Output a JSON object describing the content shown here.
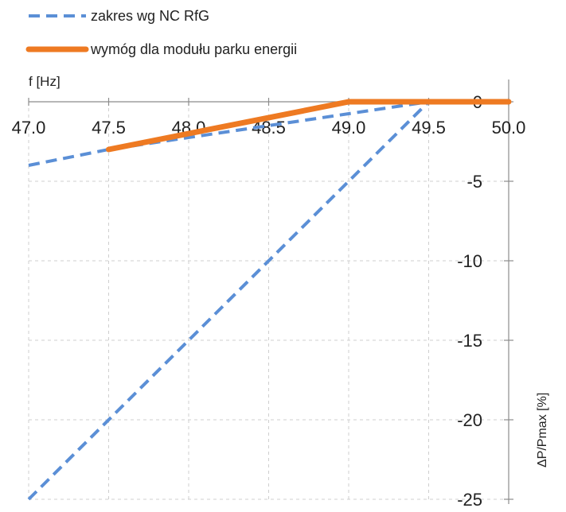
{
  "chart_data": {
    "type": "line",
    "title": "",
    "xlabel": "f [Hz]",
    "ylabel": "ΔP/Pmax [%]",
    "xlim": [
      47.0,
      50.0
    ],
    "ylim": [
      -25,
      0
    ],
    "x_ticks": [
      "47.0",
      "47.5",
      "48.0",
      "48.5",
      "49.0",
      "49.5",
      "50.0"
    ],
    "y_ticks": [
      "0",
      "-5",
      "-10",
      "-15",
      "-20",
      "-25"
    ],
    "x_axis_position": "top",
    "y_axis_position": "right",
    "grid": true,
    "legend_position": "top-left",
    "series": [
      {
        "name": "zakres wg NC RfG",
        "style": "dashed",
        "color": "#5b8fd6",
        "points": [
          {
            "x": 47.0,
            "y": -4
          },
          {
            "x": 47.5,
            "y": -3
          },
          {
            "x": 49.5,
            "y": 0
          }
        ],
        "points_2": [
          {
            "x": 47.0,
            "y": -25
          },
          {
            "x": 49.5,
            "y": 0
          }
        ]
      },
      {
        "name": "wymóg dla modułu parku energii",
        "style": "solid",
        "color": "#ee7a22",
        "points": [
          {
            "x": 47.5,
            "y": -3
          },
          {
            "x": 49.0,
            "y": 0
          },
          {
            "x": 50.0,
            "y": 0
          }
        ]
      }
    ]
  }
}
